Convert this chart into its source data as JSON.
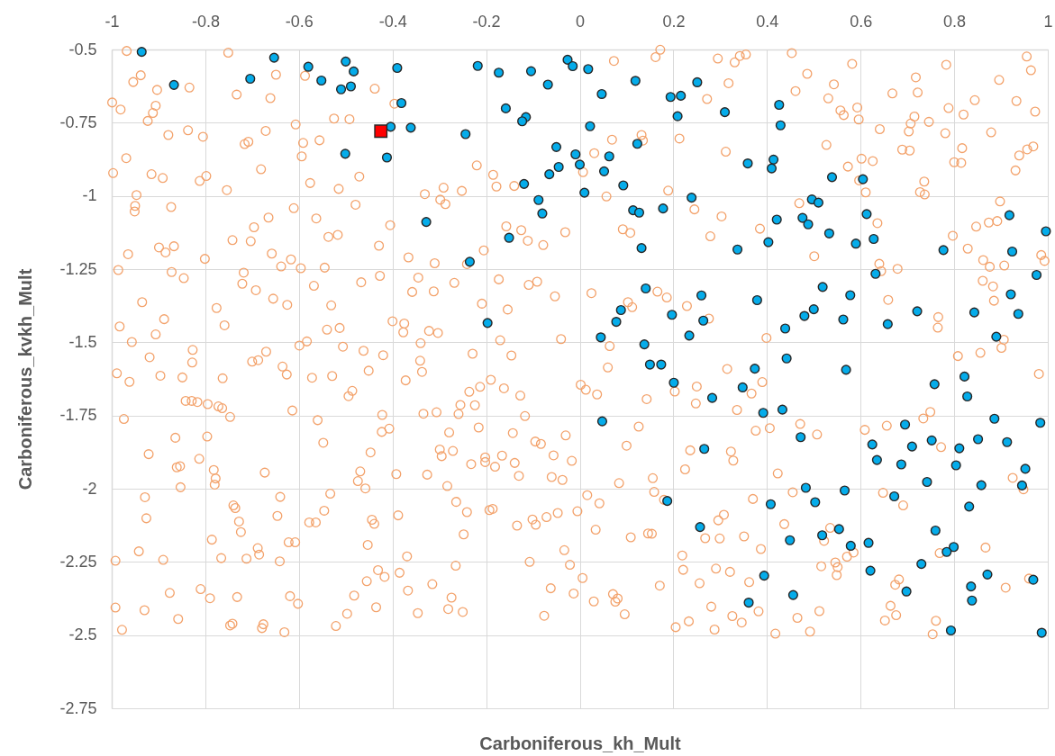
{
  "chart_data": {
    "type": "scatter",
    "xlabel": "Carboniferous_kh_Mult",
    "ylabel": "Carboniferous_kvkh_Mult",
    "xlim": [
      -1,
      1
    ],
    "ylim": [
      -2.75,
      -0.5
    ],
    "xticks": [
      -1,
      -0.8,
      -0.6,
      -0.4,
      -0.2,
      0,
      0.2,
      0.4,
      0.6,
      0.8,
      1
    ],
    "yticks": [
      -2.75,
      -2.5,
      -2.25,
      -2,
      -1.75,
      -1.5,
      -1.25,
      -1,
      -0.75,
      -0.5
    ],
    "grid": true,
    "marker": "circle",
    "series": [
      {
        "color": "#f3a26b",
        "x": [
          -0.968,
          -0.751,
          -0.938,
          -0.954,
          -0.903,
          -0.834,
          -0.649,
          -0.587,
          -0.733,
          -0.661,
          -0.438,
          -0.999,
          -0.981,
          -0.906,
          -0.912,
          -0.923,
          -0.396,
          -0.525,
          -0.492,
          -0.607,
          -0.879,
          -0.837,
          -0.805,
          -0.671,
          -0.716,
          -0.708,
          -0.591,
          -0.556,
          -0.594,
          -0.969,
          -0.997,
          -0.915,
          -0.891,
          -0.812,
          -0.798,
          -0.681,
          -0.754,
          -0.576,
          -0.515,
          -0.471,
          -0.947,
          -0.95,
          -0.951,
          -0.873,
          -0.611,
          -0.479,
          -0.665,
          -0.696,
          -0.563,
          -0.405,
          -0.742,
          -0.703,
          -0.537,
          -0.517,
          -0.429,
          -0.899,
          -0.867,
          -0.885,
          -0.965,
          -0.801,
          -0.658,
          -0.617,
          -0.638,
          -0.596,
          -0.545,
          -0.366,
          -0.986,
          -0.872,
          -0.846,
          -0.718,
          -0.721,
          -0.692,
          -0.655,
          -0.625,
          -0.568,
          -0.531,
          -0.467,
          -0.427,
          -0.358,
          -0.935,
          -0.776,
          -0.888,
          -0.759,
          -0.983,
          -0.906,
          -0.54,
          -0.513,
          -0.4,
          -0.375,
          -0.377,
          -0.957,
          -0.599,
          -0.583,
          -0.506,
          -0.462,
          -0.42,
          -0.919,
          -0.827,
          -0.828,
          -0.7,
          -0.687,
          -0.67,
          -0.635,
          -0.626,
          -0.451,
          -0.989,
          -0.896,
          -0.849,
          -0.572,
          -0.529,
          -0.763,
          -0.962,
          -0.372,
          0.172,
          0.162,
          0.073,
          0.295,
          0.318,
          0.272,
          0.132,
          0.135,
          0.069,
          0.213,
          0.031,
          0.312,
          -0.22,
          -0.185,
          -0.178,
          -0.14,
          0.007,
          -0.331,
          -0.291,
          -0.298,
          -0.287,
          -0.252,
          0.057,
          0.189,
          0.245,
          0.303,
          0.279,
          -0.157,
          -0.125,
          -0.111,
          -0.078,
          -0.031,
          0.092,
          0.108,
          -0.205,
          -0.31,
          -0.241,
          -0.345,
          -0.268,
          -0.312,
          -0.173,
          -0.109,
          -0.091,
          -0.053,
          0.025,
          -0.209,
          -0.154,
          0.103,
          0.112,
          0.166,
          0.186,
          0.229,
          0.276,
          -0.322,
          -0.303,
          -0.17,
          -0.04,
          0.064,
          -0.34,
          -0.229,
          -0.146,
          0.06,
          0.315,
          -0.341,
          -0.337,
          -0.19,
          0.331,
          0.342,
          0.355,
          0.453,
          0.582,
          0.783,
          0.955,
          0.964,
          0.486,
          0.543,
          0.718,
          0.722,
          0.668,
          0.896,
          0.461,
          0.531,
          0.557,
          0.564,
          0.593,
          0.596,
          0.844,
          0.933,
          0.973,
          0.788,
          0.82,
          0.715,
          0.707,
          0.703,
          0.746,
          0.641,
          0.781,
          0.879,
          0.527,
          0.689,
          0.705,
          0.817,
          0.939,
          0.956,
          0.969,
          0.573,
          0.602,
          0.626,
          0.8,
          0.815,
          0.931,
          0.597,
          0.611,
          0.736,
          0.727,
          0.737,
          0.469,
          0.898,
          0.385,
          0.636,
          0.847,
          0.874,
          0.892,
          0.797,
          0.829,
          0.501,
          0.862,
          0.876,
          0.907,
          0.986,
          0.993,
          0.64,
          0.644,
          0.679,
          0.861,
          0.883,
          0.885,
          0.659,
          0.766,
          0.765,
          0.399,
          0.906,
          0.901,
          0.808,
          0.856,
          0.981,
          0.39,
          -0.842,
          -0.829,
          -0.817,
          -0.795,
          -0.772,
          -0.764,
          -0.747,
          -0.614,
          -0.494,
          -0.486,
          -0.974,
          -0.56,
          -0.422,
          -0.423,
          -0.407,
          -0.864,
          -0.796,
          -0.548,
          -0.921,
          -0.813,
          -0.447,
          -0.861,
          -0.854,
          -0.782,
          -0.778,
          -0.78,
          -0.673,
          -0.469,
          -0.474,
          -0.458,
          -0.392,
          -0.853,
          -0.929,
          -0.926,
          -0.74,
          -0.736,
          -0.728,
          -0.724,
          -0.64,
          -0.646,
          -0.533,
          -0.546,
          -0.578,
          -0.564,
          -0.444,
          -0.439,
          -0.388,
          -0.786,
          -0.453,
          -0.622,
          -0.608,
          -0.942,
          -0.89,
          -0.992,
          -0.766,
          -0.712,
          -0.688,
          -0.685,
          -0.641,
          -0.369,
          -0.431,
          -0.417,
          -0.385,
          -0.455,
          -0.876,
          -0.81,
          -0.79,
          -0.732,
          -0.619,
          -0.602,
          -0.482,
          -0.367,
          -0.992,
          -0.93,
          -0.858,
          -0.978,
          -0.435,
          -0.497,
          -0.521,
          -0.747,
          -0.742,
          -0.679,
          -0.676,
          -0.631,
          -0.346,
          0.002,
          0.013,
          0.037,
          -0.236,
          -0.213,
          -0.162,
          -0.127,
          -0.255,
          -0.224,
          -0.259,
          -0.306,
          -0.334,
          -0.117,
          0.143,
          0.203,
          0.25,
          0.248,
          0.336,
          -0.279,
          -0.216,
          -0.143,
          -0.03,
          -0.095,
          -0.083,
          0.126,
          0.1,
          -0.299,
          -0.295,
          -0.271,
          -0.232,
          -0.202,
          -0.202,
          -0.181,
          -0.166,
          -0.139,
          -0.13,
          -0.056,
          -0.017,
          -0.06,
          -0.037,
          -0.326,
          0.236,
          0.225,
          0.323,
          0.328,
          0.084,
          0.156,
          0.159,
          0.18,
          -0.283,
          -0.264,
          -0.241,
          -0.193,
          -0.186,
          -0.248,
          -0.134,
          -0.101,
          -0.094,
          -0.071,
          -0.047,
          -0.005,
          0.016,
          0.042,
          0.034,
          0.109,
          0.146,
          0.154,
          0.308,
          0.296,
          0.268,
          0.299,
          -0.033,
          0.219,
          -0.265,
          -0.107,
          -0.021,
          0.221,
          0.291,
          0.321,
          0.256,
          -0.315,
          0.006,
          0.171,
          -0.274,
          -0.062,
          -0.013,
          0.03,
          0.071,
          0.076,
          0.081,
          -0.281,
          -0.25,
          -0.076,
          0.096,
          0.281,
          0.326,
          0.205,
          0.233,
          0.288,
          0.367,
          0.734,
          0.749,
          0.609,
          0.656,
          0.772,
          0.376,
          0.406,
          0.471,
          0.507,
          0.423,
          0.925,
          0.948,
          0.37,
          0.455,
          0.648,
          0.691,
          0.437,
          0.351,
          0.387,
          0.535,
          0.522,
          0.571,
          0.585,
          0.546,
          0.551,
          0.549,
          0.516,
          0.769,
          0.867,
          0.362,
          0.682,
          0.674,
          0.91,
          0.96,
          0.382,
          0.346,
          0.465,
          0.512,
          0.492,
          0.418,
          0.664,
          0.676,
          0.652,
          0.761,
          0.754
        ],
        "values": [
          -0.505,
          -0.511,
          -0.588,
          -0.611,
          -0.638,
          -0.63,
          -0.586,
          -0.59,
          -0.654,
          -0.666,
          -0.634,
          -0.681,
          -0.705,
          -0.692,
          -0.717,
          -0.744,
          -0.685,
          -0.736,
          -0.738,
          -0.756,
          -0.792,
          -0.776,
          -0.798,
          -0.778,
          -0.823,
          -0.815,
          -0.819,
          -0.81,
          -0.865,
          -0.871,
          -0.922,
          -0.926,
          -0.939,
          -0.949,
          -0.932,
          -0.909,
          -0.98,
          -0.956,
          -0.976,
          -0.934,
          -0.997,
          -1.034,
          -1.053,
          -1.038,
          -1.042,
          -1.03,
          -1.074,
          -1.107,
          -1.077,
          -1.1,
          -1.151,
          -1.155,
          -1.14,
          -1.133,
          -1.17,
          -1.176,
          -1.172,
          -1.193,
          -1.199,
          -1.215,
          -1.197,
          -1.217,
          -1.241,
          -1.247,
          -1.245,
          -1.21,
          -1.253,
          -1.26,
          -1.281,
          -1.262,
          -1.3,
          -1.322,
          -1.351,
          -1.372,
          -1.307,
          -1.374,
          -1.295,
          -1.273,
          -1.328,
          -1.363,
          -1.383,
          -1.421,
          -1.442,
          -1.446,
          -1.473,
          -1.457,
          -1.451,
          -1.428,
          -1.436,
          -1.466,
          -1.499,
          -1.511,
          -1.497,
          -1.515,
          -1.529,
          -1.544,
          -1.551,
          -1.526,
          -1.569,
          -1.566,
          -1.561,
          -1.532,
          -1.583,
          -1.61,
          -1.597,
          -1.606,
          -1.614,
          -1.62,
          -1.621,
          -1.615,
          -1.623,
          -1.635,
          -1.63,
          -0.501,
          -0.526,
          -0.539,
          -0.531,
          -0.615,
          -0.669,
          -0.792,
          -0.811,
          -0.808,
          -0.804,
          -0.854,
          -0.849,
          -0.896,
          -0.928,
          -0.968,
          -0.966,
          -0.919,
          -0.994,
          -0.972,
          -1.013,
          -1.028,
          -0.983,
          -1.002,
          -0.982,
          -1.046,
          -1.07,
          -1.138,
          -1.104,
          -1.117,
          -1.153,
          -1.168,
          -1.124,
          -1.114,
          -1.126,
          -1.186,
          -1.23,
          -1.233,
          -1.279,
          -1.297,
          -1.326,
          -1.285,
          -1.304,
          -1.293,
          -1.343,
          -1.332,
          -1.368,
          -1.388,
          -1.363,
          -1.38,
          -1.327,
          -1.347,
          -1.376,
          -1.419,
          -1.461,
          -1.468,
          -1.493,
          -1.489,
          -1.513,
          -1.503,
          -1.539,
          -1.545,
          -1.586,
          -1.591,
          -1.563,
          -1.601,
          -1.628,
          -0.544,
          -0.522,
          -0.517,
          -0.512,
          -0.549,
          -0.552,
          -0.524,
          -0.571,
          -0.583,
          -0.619,
          -0.595,
          -0.647,
          -0.65,
          -0.604,
          -0.642,
          -0.667,
          -0.708,
          -0.724,
          -0.698,
          -0.739,
          -0.673,
          -0.676,
          -0.712,
          -0.7,
          -0.722,
          -0.729,
          -0.753,
          -0.78,
          -0.747,
          -0.772,
          -0.786,
          -0.783,
          -0.826,
          -0.842,
          -0.845,
          -0.837,
          -0.862,
          -0.841,
          -0.831,
          -0.9,
          -0.873,
          -0.881,
          -0.885,
          -0.887,
          -0.913,
          -0.947,
          -0.988,
          -0.951,
          -0.987,
          -0.995,
          -1.025,
          -1.019,
          -1.112,
          -1.093,
          -1.105,
          -1.091,
          -1.086,
          -1.136,
          -1.18,
          -1.206,
          -1.219,
          -1.242,
          -1.238,
          -1.202,
          -1.222,
          -1.232,
          -1.257,
          -1.249,
          -1.29,
          -1.309,
          -1.358,
          -1.355,
          -1.414,
          -1.45,
          -1.485,
          -1.491,
          -1.519,
          -1.547,
          -1.536,
          -1.608,
          -1.636,
          -1.7,
          -1.7,
          -1.704,
          -1.711,
          -1.719,
          -1.725,
          -1.755,
          -1.733,
          -1.684,
          -1.666,
          -1.762,
          -1.766,
          -1.748,
          -1.806,
          -1.795,
          -1.826,
          -1.822,
          -1.843,
          -1.882,
          -1.898,
          -1.876,
          -1.927,
          -1.923,
          -1.936,
          -1.965,
          -1.986,
          -1.945,
          -1.941,
          -1.974,
          -1.999,
          -1.95,
          -1.995,
          -2.029,
          -2.101,
          -2.057,
          -2.066,
          -2.112,
          -2.148,
          -2.028,
          -2.093,
          -2.017,
          -2.075,
          -2.115,
          -2.115,
          -2.106,
          -2.12,
          -2.091,
          -2.174,
          -2.192,
          -2.183,
          -2.183,
          -2.214,
          -2.243,
          -2.246,
          -2.237,
          -2.239,
          -2.203,
          -2.225,
          -2.248,
          -2.231,
          -2.278,
          -2.301,
          -2.287,
          -2.316,
          -2.356,
          -2.343,
          -2.374,
          -2.37,
          -2.367,
          -2.393,
          -2.365,
          -2.348,
          -2.406,
          -2.415,
          -2.445,
          -2.482,
          -2.405,
          -2.427,
          -2.469,
          -2.467,
          -2.461,
          -2.476,
          -2.463,
          -2.49,
          -2.425,
          -1.645,
          -1.662,
          -1.678,
          -1.669,
          -1.652,
          -1.657,
          -1.682,
          -1.714,
          -1.715,
          -1.745,
          -1.739,
          -1.744,
          -1.752,
          -1.694,
          -1.668,
          -1.651,
          -1.709,
          -1.731,
          -1.808,
          -1.791,
          -1.81,
          -1.818,
          -1.839,
          -1.847,
          -1.788,
          -1.853,
          -1.866,
          -1.889,
          -1.871,
          -1.916,
          -1.893,
          -1.909,
          -1.925,
          -1.887,
          -1.912,
          -1.956,
          -1.886,
          -1.905,
          -1.96,
          -1.97,
          -1.952,
          -1.869,
          -1.934,
          -1.873,
          -1.904,
          -1.981,
          -1.964,
          -2.011,
          -2.038,
          -1.991,
          -2.045,
          -2.08,
          -2.073,
          -2.069,
          -2.156,
          -2.126,
          -2.105,
          -2.123,
          -2.097,
          -2.083,
          -2.077,
          -2.022,
          -2.05,
          -2.14,
          -2.166,
          -2.153,
          -2.154,
          -2.089,
          -2.108,
          -2.169,
          -2.17,
          -2.21,
          -2.228,
          -2.263,
          -2.25,
          -2.26,
          -2.277,
          -2.273,
          -2.284,
          -2.323,
          -2.326,
          -2.305,
          -2.331,
          -2.372,
          -2.34,
          -2.358,
          -2.385,
          -2.36,
          -2.386,
          -2.375,
          -2.411,
          -2.421,
          -2.434,
          -2.429,
          -2.403,
          -2.435,
          -2.473,
          -2.453,
          -2.481,
          -1.675,
          -1.76,
          -1.738,
          -1.799,
          -1.785,
          -1.858,
          -1.802,
          -1.793,
          -1.779,
          -1.815,
          -1.948,
          -1.963,
          -2.002,
          -2.035,
          -2.012,
          -2.014,
          -2.057,
          -2.121,
          -2.163,
          -2.206,
          -2.134,
          -2.178,
          -2.232,
          -2.218,
          -2.252,
          -2.268,
          -2.295,
          -2.265,
          -2.22,
          -2.201,
          -2.319,
          -2.31,
          -2.328,
          -2.338,
          -2.307,
          -2.419,
          -2.457,
          -2.441,
          -2.418,
          -2.488,
          -2.495,
          -2.4,
          -2.432,
          -2.45,
          -2.451,
          -2.497
        ]
      },
      {
        "color": "#05acea",
        "x": [
          -0.936,
          -0.867,
          -0.704,
          -0.653,
          -0.58,
          -0.552,
          -0.5,
          -0.483,
          -0.51,
          -0.489,
          -0.39,
          -0.381,
          -0.404,
          -0.361,
          -0.501,
          -0.412,
          -0.218,
          -0.173,
          -0.104,
          -0.068,
          -0.026,
          -0.015,
          0.018,
          0.119,
          0.047,
          0.194,
          0.216,
          0.251,
          0.31,
          0.209,
          -0.158,
          -0.115,
          -0.123,
          0.022,
          -0.244,
          -0.05,
          -0.009,
          0.063,
          0.123,
          -0.045,
          -0.065,
          0.0,
          0.052,
          -0.119,
          0.093,
          0.01,
          -0.088,
          -0.08,
          0.114,
          0.127,
          0.178,
          0.239,
          -0.328,
          -0.151,
          0.132,
          -0.235,
          0.141,
          0.26,
          0.088,
          0.197,
          0.078,
          0.264,
          -0.197,
          0.234,
          0.045,
          0.138,
          0.15,
          0.174,
          0.426,
          0.429,
          0.359,
          0.414,
          0.41,
          0.539,
          0.605,
          0.496,
          0.51,
          0.421,
          0.476,
          0.488,
          0.613,
          0.533,
          0.403,
          0.59,
          0.628,
          0.337,
          0.918,
          0.996,
          0.777,
          0.924,
          0.976,
          0.632,
          0.519,
          0.578,
          0.379,
          0.921,
          0.5,
          0.48,
          0.563,
          0.439,
          0.658,
          0.721,
          0.843,
          0.937,
          0.89,
          0.442,
          0.374,
          0.569,
          0.822,
          0.201,
          0.283,
          0.048,
          0.266,
          0.187,
          0.257,
          0.758,
          0.828,
          0.348,
          0.392,
          0.433,
          0.472,
          0.695,
          0.886,
          0.984,
          0.625,
          0.635,
          0.71,
          0.687,
          0.752,
          0.811,
          0.851,
          0.913,
          0.804,
          0.952,
          0.742,
          0.858,
          0.945,
          0.483,
          0.566,
          0.408,
          0.503,
          0.672,
          0.832,
          0.76,
          0.554,
          0.518,
          0.449,
          0.579,
          0.617,
          0.799,
          0.784,
          0.73,
          0.621,
          0.394,
          0.871,
          0.969,
          0.836,
          0.698,
          0.456,
          0.361,
          0.838,
          0.793,
          0.987
        ],
        "values": [
          -0.508,
          -0.621,
          -0.6,
          -0.528,
          -0.559,
          -0.606,
          -0.541,
          -0.575,
          -0.636,
          -0.626,
          -0.563,
          -0.683,
          -0.764,
          -0.767,
          -0.856,
          -0.869,
          -0.556,
          -0.579,
          -0.574,
          -0.62,
          -0.535,
          -0.557,
          -0.567,
          -0.607,
          -0.652,
          -0.662,
          -0.658,
          -0.612,
          -0.714,
          -0.728,
          -0.701,
          -0.731,
          -0.745,
          -0.762,
          -0.789,
          -0.833,
          -0.858,
          -0.865,
          -0.822,
          -0.901,
          -0.926,
          -0.893,
          -0.916,
          -0.959,
          -0.964,
          -0.989,
          -1.014,
          -1.06,
          -1.049,
          -1.057,
          -1.043,
          -1.006,
          -1.089,
          -1.143,
          -1.178,
          -1.225,
          -1.316,
          -1.34,
          -1.39,
          -1.406,
          -1.43,
          -1.426,
          -1.434,
          -1.477,
          -1.483,
          -1.507,
          -1.576,
          -1.576,
          -0.689,
          -0.759,
          -0.889,
          -0.876,
          -0.906,
          -0.936,
          -0.943,
          -1.012,
          -1.023,
          -1.081,
          -1.075,
          -1.097,
          -1.062,
          -1.128,
          -1.158,
          -1.163,
          -1.147,
          -1.183,
          -1.066,
          -1.121,
          -1.185,
          -1.19,
          -1.27,
          -1.266,
          -1.311,
          -1.339,
          -1.356,
          -1.336,
          -1.387,
          -1.41,
          -1.422,
          -1.453,
          -1.438,
          -1.394,
          -1.398,
          -1.403,
          -1.481,
          -1.555,
          -1.59,
          -1.594,
          -1.617,
          -1.638,
          -1.69,
          -1.77,
          -1.864,
          -2.042,
          -2.131,
          -1.643,
          -1.685,
          -1.654,
          -1.741,
          -1.73,
          -1.824,
          -1.781,
          -1.761,
          -1.775,
          -1.849,
          -1.902,
          -1.856,
          -1.917,
          -1.835,
          -1.862,
          -1.831,
          -1.841,
          -1.92,
          -1.932,
          -1.977,
          -1.988,
          -1.989,
          -1.997,
          -2.006,
          -2.053,
          -2.046,
          -2.026,
          -2.061,
          -2.143,
          -2.138,
          -2.159,
          -2.176,
          -2.195,
          -2.185,
          -2.199,
          -2.216,
          -2.257,
          -2.28,
          -2.297,
          -2.293,
          -2.311,
          -2.334,
          -2.351,
          -2.363,
          -2.389,
          -2.382,
          -2.484,
          -2.492
        ]
      },
      {
        "color": "#ff0000",
        "marker": "square",
        "x": [
          -0.425
        ],
        "values": [
          -0.779
        ]
      }
    ]
  }
}
